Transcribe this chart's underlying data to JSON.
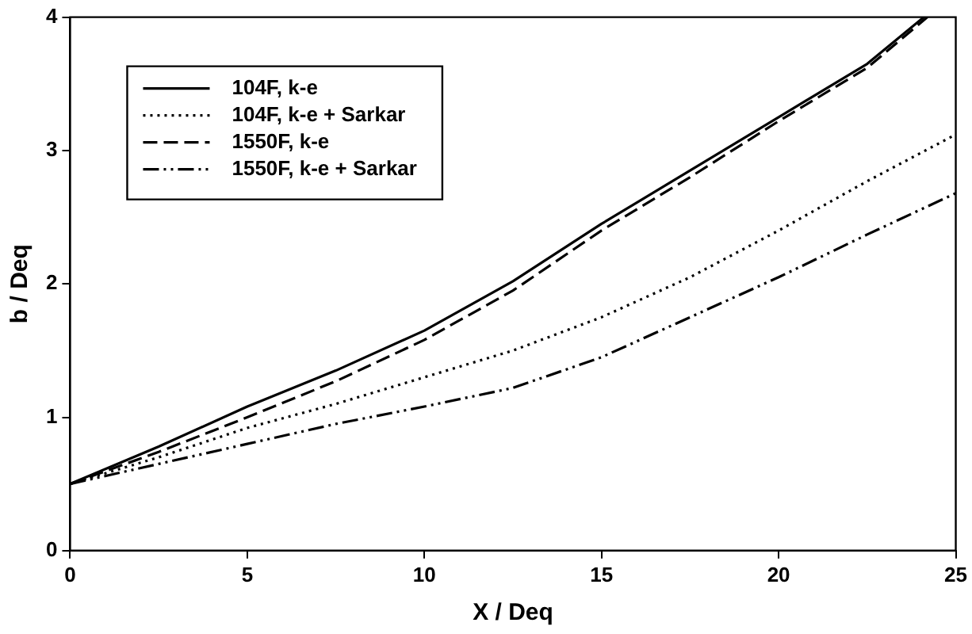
{
  "chart_data": {
    "type": "line",
    "xlabel": "X / Deq",
    "ylabel": "b / Deq",
    "xlim": [
      0,
      25
    ],
    "xticks": [
      0,
      5,
      10,
      15,
      20,
      25
    ],
    "ylim": [
      0,
      4
    ],
    "yticks": [
      0,
      1,
      2,
      3,
      4
    ],
    "grid": false,
    "legend": "top left",
    "marker": "none",
    "series": [
      {
        "name": "104F, k-e",
        "color": "#000000",
        "line_style": "solid",
        "x": [
          0,
          2.5,
          5,
          7.5,
          10,
          12.5,
          15,
          17.5,
          20,
          22.5,
          24.1
        ],
        "values": [
          0.5,
          0.78,
          1.08,
          1.35,
          1.65,
          2.02,
          2.45,
          2.85,
          3.25,
          3.65,
          4.0
        ]
      },
      {
        "name": "104F, k-e + Sarkar",
        "color": "#000000",
        "line_style": "dotted",
        "x": [
          0,
          2.5,
          5,
          7.5,
          10,
          12.5,
          15,
          17.5,
          20,
          22.5,
          25
        ],
        "values": [
          0.5,
          0.7,
          0.92,
          1.1,
          1.3,
          1.5,
          1.75,
          2.05,
          2.4,
          2.77,
          3.12
        ]
      },
      {
        "name": "1550F, k-e",
        "color": "#000000",
        "line_style": "dashed",
        "x": [
          0,
          2.5,
          5,
          7.5,
          10,
          12.5,
          15,
          17.5,
          20,
          22.5,
          24.2
        ],
        "values": [
          0.5,
          0.74,
          1.0,
          1.27,
          1.58,
          1.95,
          2.4,
          2.8,
          3.22,
          3.62,
          4.0
        ]
      },
      {
        "name": "1550F, k-e + Sarkar",
        "color": "#000000",
        "line_style": "dashdot",
        "x": [
          0,
          2.5,
          5,
          7.5,
          10,
          12.5,
          15,
          17.5,
          20,
          22.5,
          25
        ],
        "values": [
          0.5,
          0.65,
          0.8,
          0.95,
          1.08,
          1.22,
          1.45,
          1.75,
          2.05,
          2.37,
          2.68
        ]
      }
    ]
  }
}
